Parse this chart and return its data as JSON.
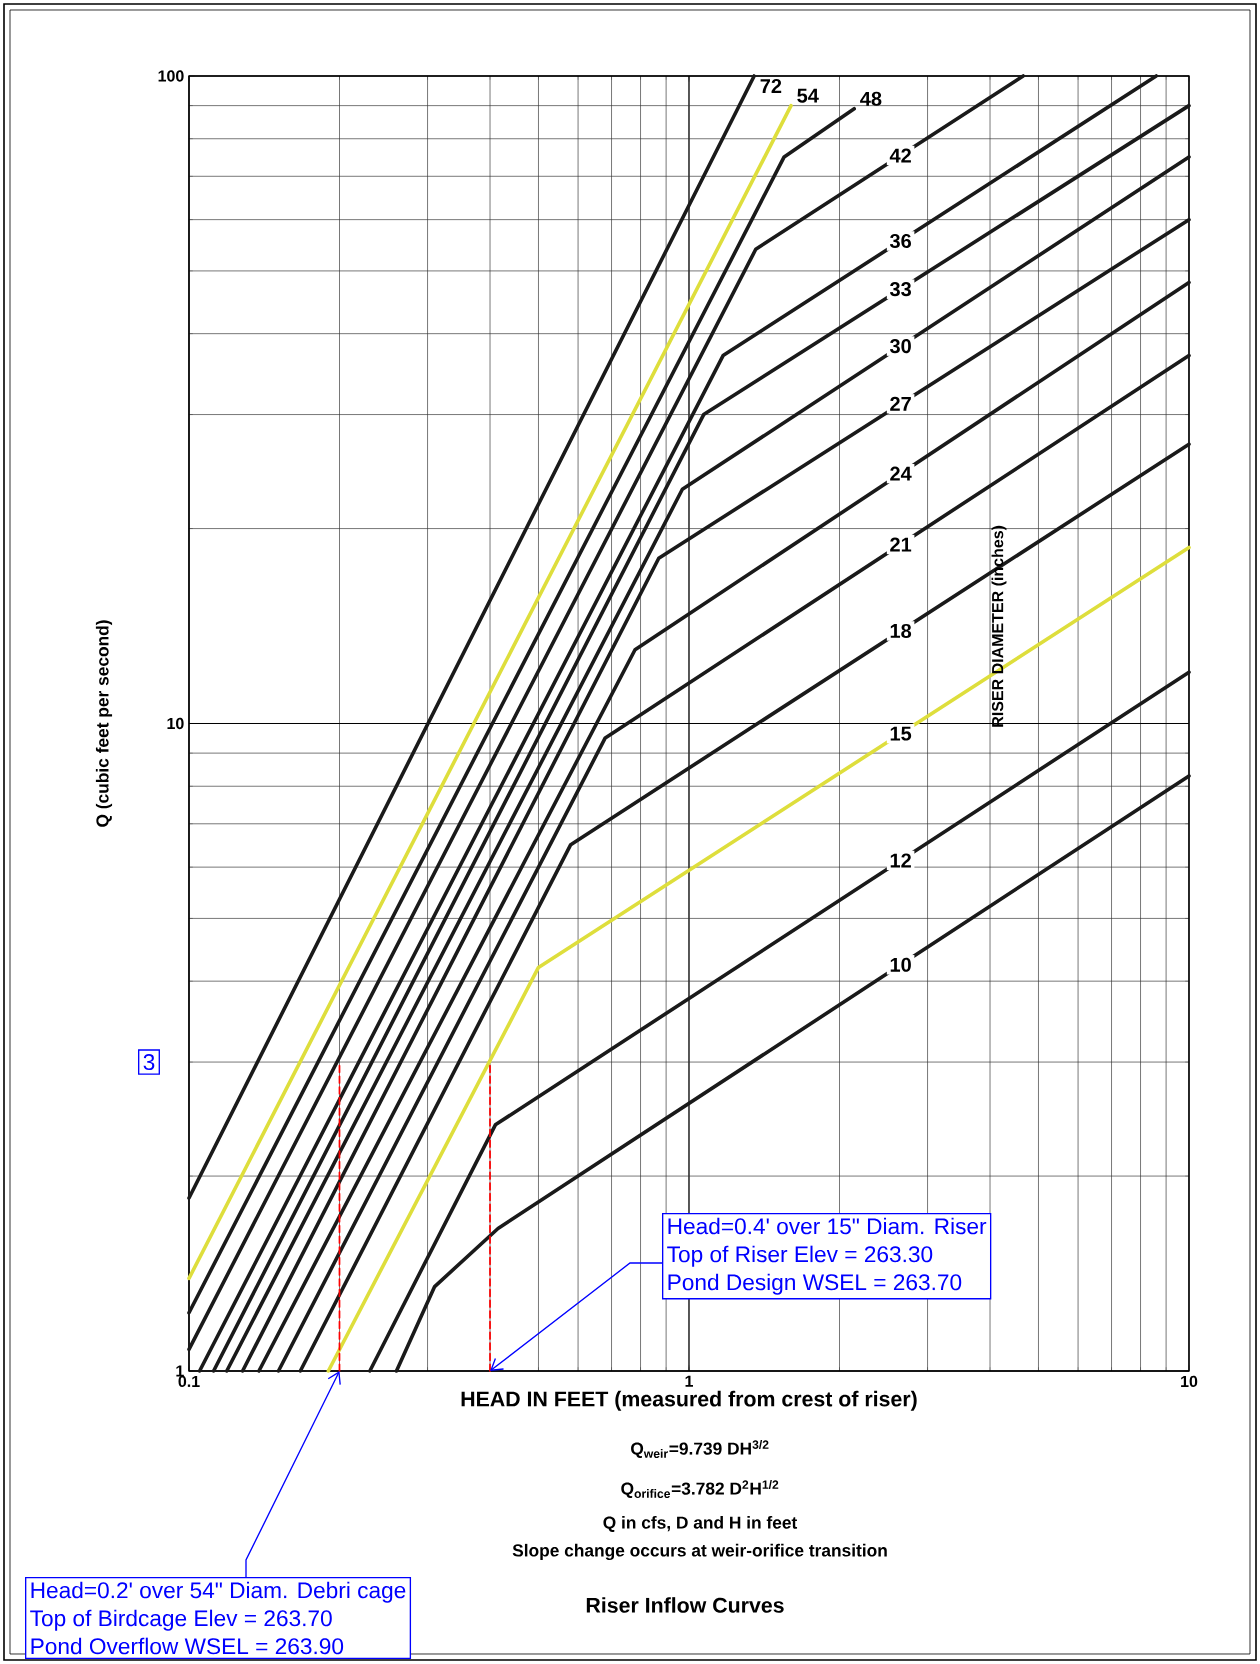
{
  "chart_data": {
    "type": "line",
    "title": "Riser Inflow Curves",
    "xlabel": "HEAD IN FEET (measured from crest of riser)",
    "ylabel": "Q (cubic feet per second)",
    "legend_title": "RISER DIAMETER (inches)",
    "log": "xy",
    "grid": true,
    "xlim": [
      0.1,
      10
    ],
    "ylim": [
      1,
      100
    ],
    "xticks": [
      0.1,
      1,
      10
    ],
    "yticks": [
      1,
      10,
      100
    ],
    "series": [
      {
        "name": "72",
        "color": "#1a1a1a",
        "x": [
          0.1,
          1.35
        ],
        "values": [
          1.85,
          100
        ]
      },
      {
        "name": "54",
        "color": "#dede3c",
        "x": [
          0.1,
          1.6
        ],
        "values": [
          1.39,
          90
        ]
      },
      {
        "name": "48",
        "color": "#1a1a1a",
        "x": [
          0.1,
          1.55,
          2.14
        ],
        "values": [
          1.23,
          75,
          89
        ]
      },
      {
        "name": "42",
        "color": "#1a1a1a",
        "x": [
          0.1,
          1.36,
          4.66
        ],
        "values": [
          1.08,
          54,
          100
        ]
      },
      {
        "name": "36",
        "color": "#1a1a1a",
        "x": [
          0.105,
          1.17,
          8.6
        ],
        "values": [
          1,
          37,
          100
        ]
      },
      {
        "name": "33",
        "color": "#1a1a1a",
        "x": [
          0.112,
          1.07,
          10
        ],
        "values": [
          1,
          30,
          90
        ]
      },
      {
        "name": "30",
        "color": "#1a1a1a",
        "x": [
          0.119,
          0.97,
          10
        ],
        "values": [
          1,
          23,
          75
        ]
      },
      {
        "name": "27",
        "color": "#1a1a1a",
        "x": [
          0.128,
          0.87,
          10
        ],
        "values": [
          1,
          18,
          60
        ]
      },
      {
        "name": "24",
        "color": "#1a1a1a",
        "x": [
          0.138,
          0.78,
          10
        ],
        "values": [
          1,
          13,
          48
        ]
      },
      {
        "name": "21",
        "color": "#1a1a1a",
        "x": [
          0.151,
          0.68,
          10
        ],
        "values": [
          1,
          9.5,
          37
        ]
      },
      {
        "name": "18",
        "color": "#1a1a1a",
        "x": [
          0.167,
          0.58,
          10
        ],
        "values": [
          1,
          6.5,
          27
        ]
      },
      {
        "name": "15",
        "color": "#dede3c",
        "x": [
          0.19,
          0.5,
          10
        ],
        "values": [
          1,
          4.2,
          18.7
        ]
      },
      {
        "name": "12",
        "color": "#1a1a1a",
        "x": [
          0.23,
          0.41,
          10
        ],
        "values": [
          1,
          2.4,
          12
        ]
      },
      {
        "name": "10",
        "color": "#1a1a1a",
        "x": [
          0.26,
          0.31,
          0.415,
          10
        ],
        "values": [
          1,
          1.35,
          1.66,
          8.3
        ]
      },
      {
        "color": "#ff0000",
        "line_style": "dashed",
        "x": [
          0.2,
          0.2
        ],
        "values": [
          1,
          3
        ]
      },
      {
        "color": "#ff0000",
        "line_style": "dashed",
        "x": [
          0.4,
          0.4
        ],
        "values": [
          1,
          3
        ]
      }
    ],
    "annotations": [
      {
        "text": "Head=0.4' over 15\" Diam. Riser",
        "x": 0.4,
        "y": 1
      },
      "Top of Riser Elev = 263.30",
      "Pond Design WSEL = 263.70",
      "3",
      {
        "text": "Head=0.2' over 54\" Diam.  Debri cage",
        "x": 0.2,
        "y": 1
      },
      "Top of Birdcage Elev = 263.70",
      "Pond Overflow WSEL = 263.90",
      "Q$_{weir}$=9.739 DH$^{3/2}$",
      "Q$_{orifice}$=3.782 D$^{2}$H$^{1/2}$",
      "Q in cfs, D and H in feet",
      "Slope change occurs at weir-orifice transition"
    ]
  }
}
